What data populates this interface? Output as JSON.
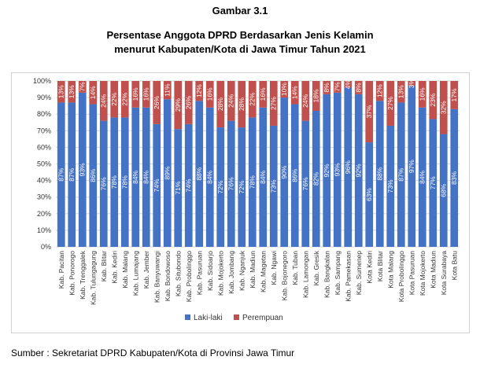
{
  "figure_label": "Gambar 3.1",
  "title_line1": "Persentase Anggota DPRD Berdasarkan Jenis Kelamin",
  "title_line2": "menurut Kabupaten/Kota di Jawa Timur Tahun 2021",
  "source": "Sumber : Sekretariat DPRD Kabupaten/Kota di Provinsi Jawa Timur",
  "colors": {
    "laki": "#4472C4",
    "perempuan": "#C0504D"
  },
  "chart_data": {
    "type": "bar",
    "stacked": true,
    "ylim": [
      0,
      100
    ],
    "yticks": [
      "0%",
      "10%",
      "20%",
      "30%",
      "40%",
      "50%",
      "60%",
      "70%",
      "80%",
      "90%",
      "100%"
    ],
    "grid": true,
    "legend_position": "bottom",
    "categories": [
      "Kab. Pacitan",
      "Kab. Ponorogo",
      "Kab. Trenggalek",
      "Kab. Tulungagung",
      "Kab. Blitar",
      "Kab. Kediri",
      "Kab. Malang",
      "Kab. Lumajang",
      "Kab. Jember",
      "Kab. Banyuwangi",
      "Kab. Bondowoso",
      "Kab. Situbondo",
      "Kab. Probolinggo",
      "Kab. Pasuruan",
      "Kab. Sidoarjo",
      "Kab. Mojokerto",
      "Kab. Jombang",
      "Kab. Nganjuk",
      "Kab. Madiun",
      "Kab. Magetan",
      "Kab. Ngawi",
      "Kab. Bojonegoro",
      "Kab. Tuban",
      "Kab. Lamongan",
      "Kab. Gresik",
      "Kab. Bangkalan",
      "Kab. Sampang",
      "Kab. Pamekasan",
      "Kab. Sumenep",
      "Kota Kediri",
      "Kota Blitar",
      "Kota Malang",
      "Kota Probolinggo",
      "Kota Pasuruan",
      "Kota Mojokerto",
      "Kota Madiun",
      "Kota Surabaya",
      "Kota Batu"
    ],
    "series": [
      {
        "name": "Laki-laki",
        "values": [
          87,
          87,
          93,
          86,
          76,
          78,
          78,
          84,
          84,
          74,
          89,
          71,
          74,
          88,
          84,
          72,
          76,
          72,
          78,
          84,
          73,
          90,
          86,
          76,
          82,
          92,
          93,
          96,
          92,
          63,
          88,
          73,
          87,
          97,
          84,
          77,
          68,
          83
        ],
        "labels": [
          "87%",
          "87%",
          "93%",
          "86%",
          "76%",
          "78%",
          "78%",
          "84%",
          "84%",
          "74%",
          "89%",
          "71%",
          "74%",
          "88%",
          "84%",
          "72%",
          "76%",
          "72%",
          "78%",
          "84%",
          "73%",
          "90%",
          "86%",
          "76%",
          "82%",
          "92%",
          "93%",
          "96%",
          "92%",
          "63%",
          "88%",
          "73%",
          "87%",
          "97%",
          "84%",
          "77%",
          "68%",
          "83%"
        ]
      },
      {
        "name": "Perempuan",
        "values": [
          13,
          13,
          7,
          14,
          24,
          22,
          22,
          16,
          16,
          26,
          11,
          29,
          26,
          12,
          16,
          28,
          24,
          28,
          22,
          16,
          27,
          10,
          14,
          24,
          18,
          8,
          7,
          4,
          8,
          37,
          12,
          27,
          13,
          3,
          16,
          23,
          32,
          17
        ],
        "labels": [
          "13%",
          "13%",
          "7%",
          "14%",
          "24%",
          "22%",
          "22%",
          "16%",
          "16%",
          "26%",
          "11%",
          "29%",
          "26%",
          "12%",
          "16%",
          "28%",
          "24%",
          "28%",
          "22%",
          "16%",
          "27%",
          "10%",
          "14%",
          "24%",
          "18%",
          "8%",
          "7%",
          "4%",
          "8%",
          "37%",
          "12%",
          "27%",
          "13%",
          "3%",
          "16%",
          "23%",
          "32%",
          "17%"
        ]
      }
    ]
  }
}
